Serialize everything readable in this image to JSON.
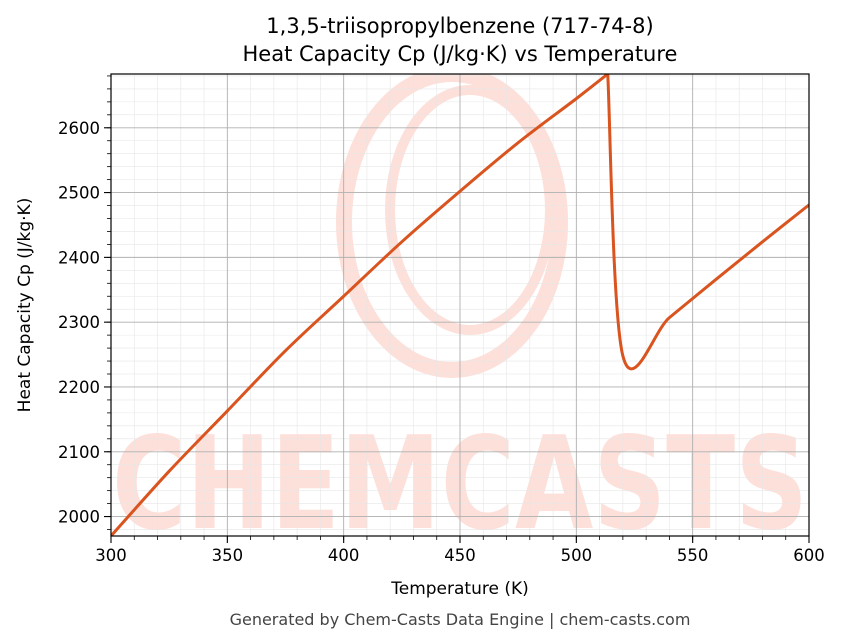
{
  "title_line1": "1,3,5-triisopropylbenzene (717-74-8)",
  "title_line2": "Heat Capacity Cp (J/kg·K) vs Temperature",
  "footer": "Generated by Chem-Casts Data Engine | chem-casts.com",
  "watermark_text": "CHEMCASTS",
  "colors": {
    "line": "#d9541f",
    "watermark": "#fde0da",
    "grid_major": "#b0b0b0",
    "grid_minor": "#e6e6e6"
  },
  "chart_data": {
    "type": "line",
    "title": "1,3,5-triisopropylbenzene (717-74-8)\nHeat Capacity Cp (J/kg·K) vs Temperature",
    "xlabel": "Temperature (K)",
    "ylabel": "Heat Capacity Cp (J/kg·K)",
    "xlim": [
      300,
      600
    ],
    "ylim": [
      1970,
      2683
    ],
    "x_ticks": [
      300,
      350,
      400,
      450,
      500,
      550,
      600
    ],
    "y_ticks": [
      2000,
      2100,
      2200,
      2300,
      2400,
      2500,
      2600
    ],
    "grid": true,
    "series": [
      {
        "x": [
          300,
          325,
          350,
          375,
          400,
          425,
          450,
          475,
          500,
          513.5,
          520,
          540,
          560,
          580,
          600
        ],
        "y": [
          1970,
          2070,
          2163,
          2256,
          2340,
          2424,
          2502,
          2577,
          2645,
          2683,
          2248,
          2307,
          2366,
          2424,
          2481
        ]
      }
    ]
  }
}
